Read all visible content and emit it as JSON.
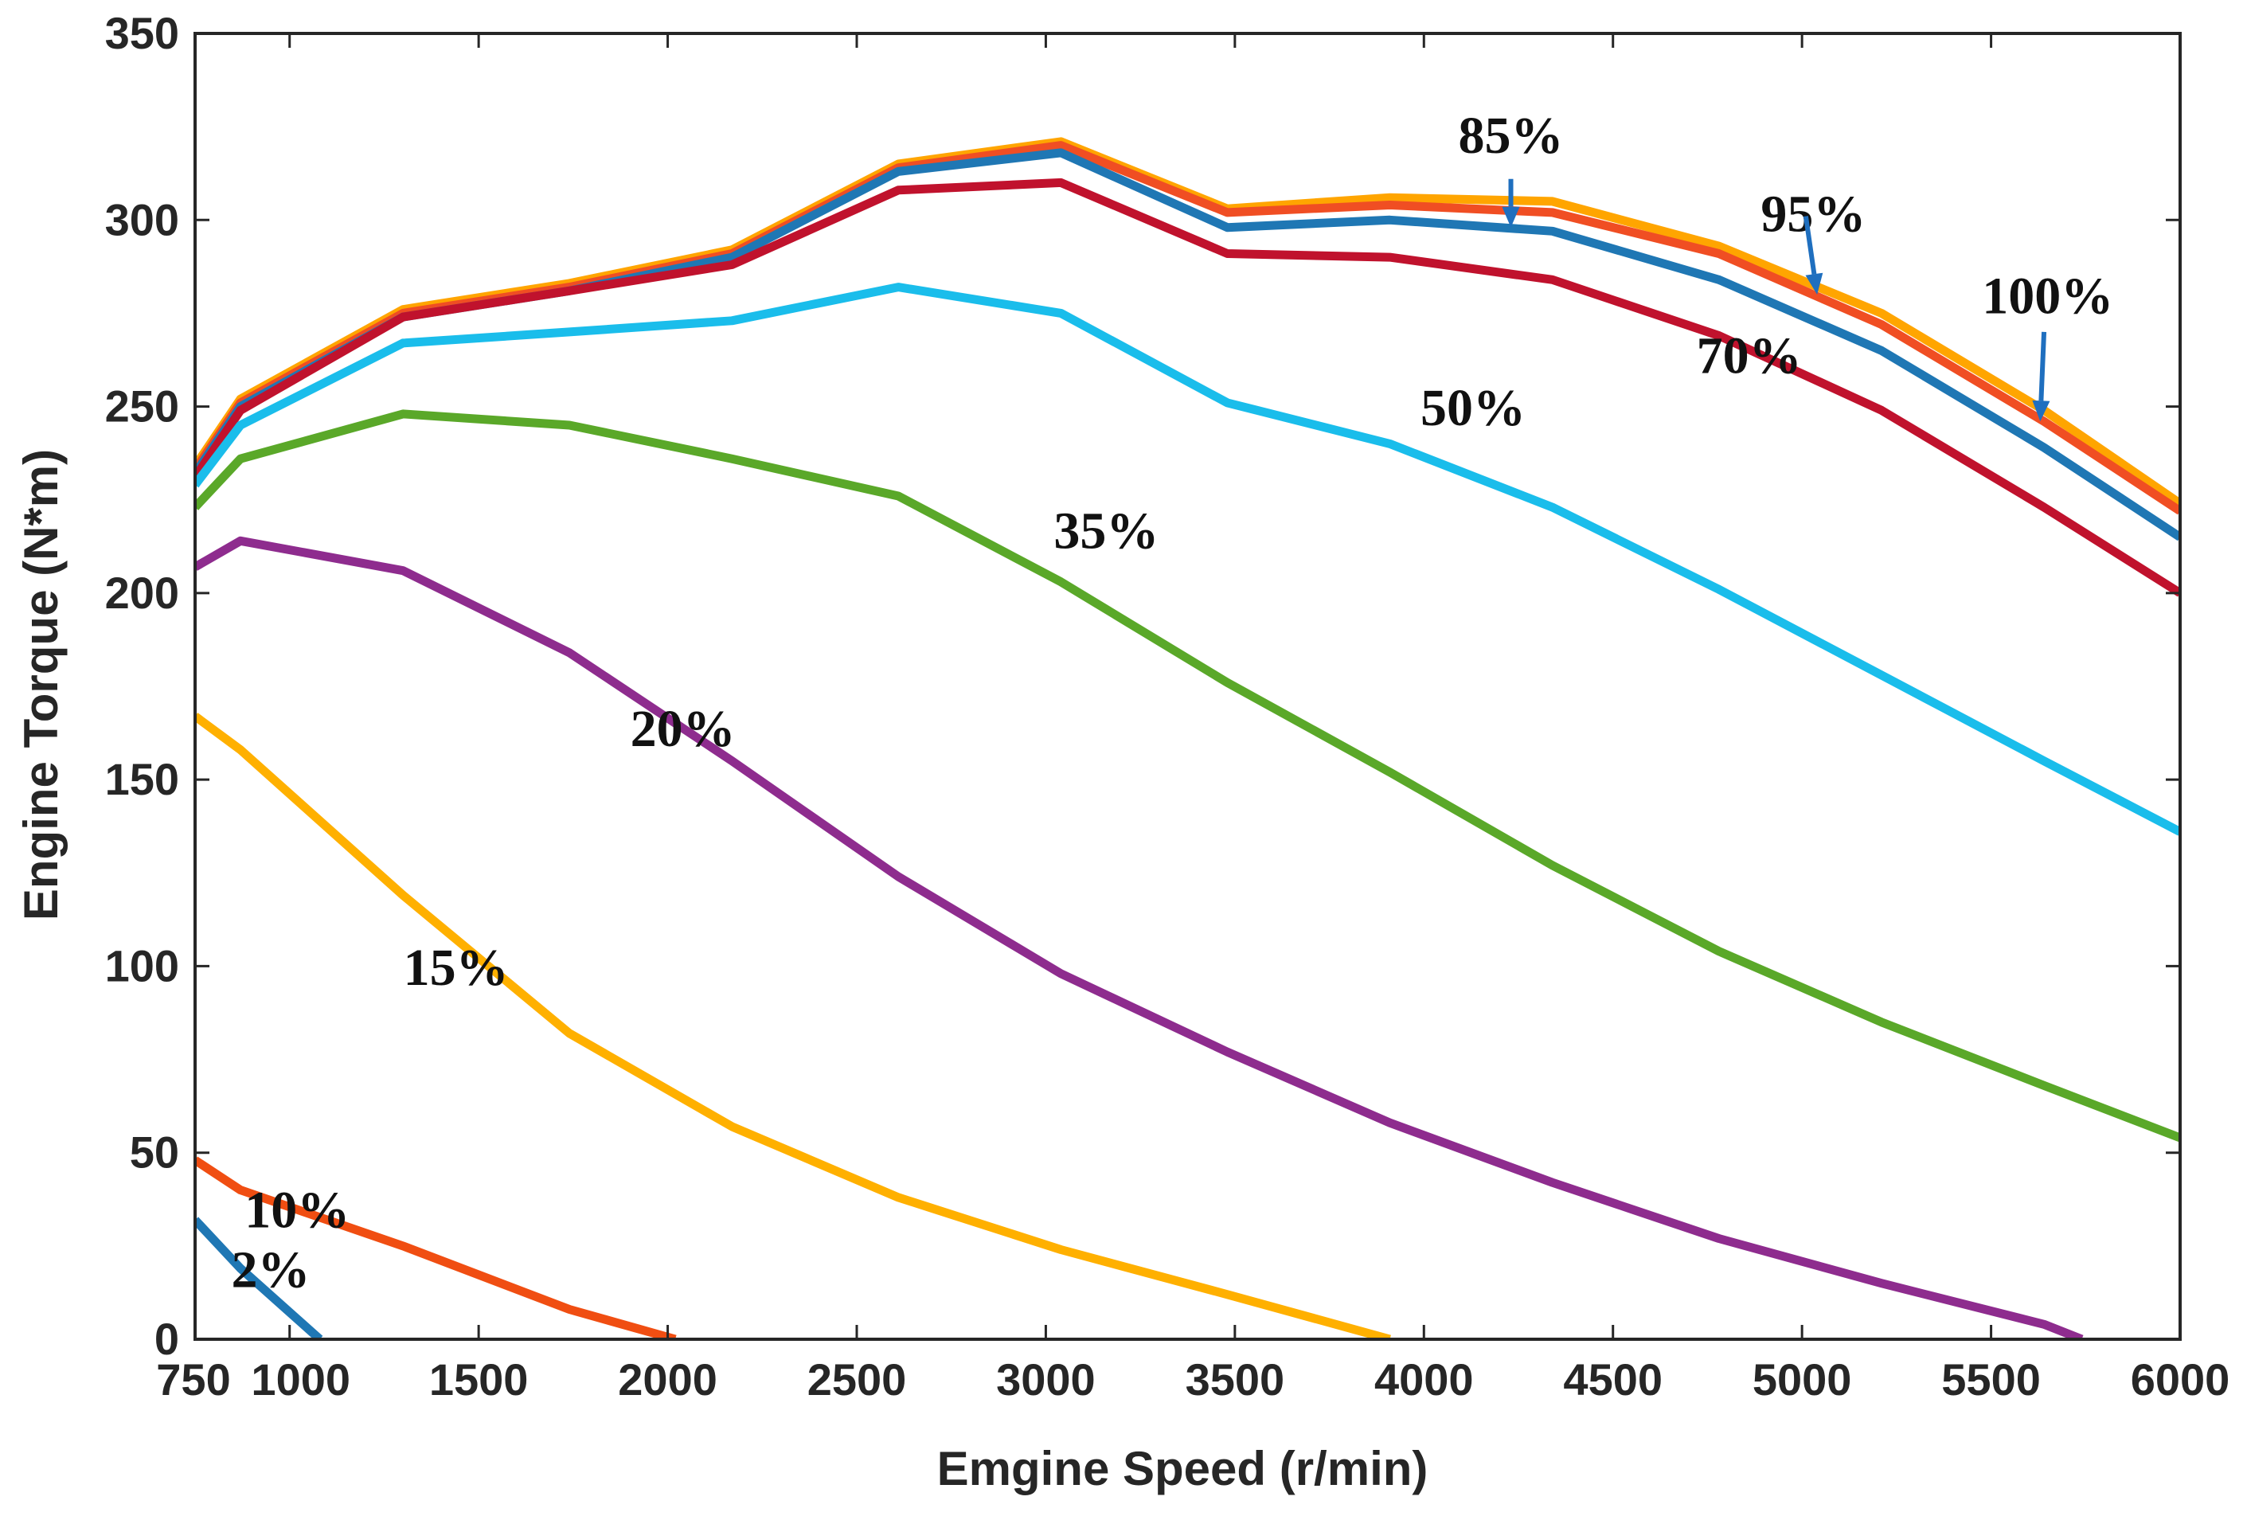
{
  "chart_data": {
    "type": "line",
    "title": "",
    "xlabel": "Emgine Speed (r/min)",
    "ylabel": "Engine Torque (N*m)",
    "xlim": [
      750,
      6000
    ],
    "ylim": [
      0,
      350
    ],
    "xticks": [
      750,
      1000,
      1500,
      2000,
      2500,
      3000,
      3500,
      4000,
      4500,
      5000,
      5500,
      6000
    ],
    "xtick_labels": [
      "750",
      "1000",
      "1500",
      "2000",
      "2500",
      "3000",
      "3500",
      "4000",
      "4500",
      "5000",
      "5500",
      "6000"
    ],
    "yticks": [
      0,
      50,
      100,
      150,
      200,
      250,
      300,
      350
    ],
    "ytick_labels": [
      "0",
      "50",
      "100",
      "150",
      "200",
      "250",
      "300",
      "350"
    ],
    "grid": false,
    "series": [
      {
        "name": "100%",
        "color": "#FFA500",
        "x": [
          750,
          870,
          1300,
          1740,
          2170,
          2610,
          3040,
          3480,
          3910,
          4340,
          4780,
          5210,
          5640,
          6000
        ],
        "y": [
          234,
          252,
          276,
          283,
          292,
          315,
          321,
          303,
          306,
          305,
          293,
          275,
          249,
          224
        ]
      },
      {
        "name": "95%",
        "color": "#F04E23",
        "x": [
          750,
          870,
          1300,
          1740,
          2170,
          2610,
          3040,
          3480,
          3910,
          4340,
          4780,
          5210,
          5640,
          6000
        ],
        "y": [
          233,
          251,
          275,
          282,
          291,
          314,
          320,
          302,
          304,
          302,
          291,
          272,
          246,
          222
        ]
      },
      {
        "name": "85%",
        "color": "#1F77B4",
        "x": [
          750,
          870,
          1300,
          1740,
          2170,
          2610,
          3040,
          3480,
          3910,
          4340,
          4780,
          5210,
          5640,
          6000
        ],
        "y": [
          232,
          250,
          274,
          281,
          290,
          313,
          318,
          298,
          300,
          297,
          284,
          265,
          239,
          215
        ]
      },
      {
        "name": "70%",
        "color": "#C0122D",
        "x": [
          750,
          870,
          1300,
          1740,
          2170,
          2610,
          3040,
          3480,
          3910,
          4340,
          4780,
          5210,
          5640,
          6000
        ],
        "y": [
          231,
          249,
          274,
          281,
          288,
          308,
          310,
          291,
          290,
          284,
          269,
          249,
          223,
          200
        ]
      },
      {
        "name": "50%",
        "color": "#1ABDEB",
        "x": [
          750,
          870,
          1300,
          1740,
          2170,
          2610,
          3040,
          3480,
          3910,
          4340,
          4780,
          5210,
          5640,
          6000
        ],
        "y": [
          229,
          245,
          267,
          270,
          273,
          282,
          275,
          251,
          240,
          223,
          201,
          178,
          155,
          136
        ]
      },
      {
        "name": "35%",
        "color": "#5AA829",
        "x": [
          750,
          870,
          1300,
          1740,
          2170,
          2610,
          3040,
          3480,
          3910,
          4340,
          4780,
          5210,
          5640,
          6000
        ],
        "y": [
          223,
          236,
          248,
          245,
          236,
          226,
          203,
          176,
          152,
          127,
          104,
          85,
          68,
          54
        ]
      },
      {
        "name": "20%",
        "color": "#8E2C8E",
        "x": [
          750,
          870,
          1300,
          1740,
          2170,
          2610,
          3040,
          3480,
          3910,
          4340,
          4780,
          5210,
          5640,
          5740
        ],
        "y": [
          207,
          214,
          206,
          184,
          155,
          124,
          98,
          77,
          58,
          42,
          27,
          15,
          4,
          0
        ]
      },
      {
        "name": "15%",
        "color": "#FFB000",
        "x": [
          750,
          870,
          1300,
          1740,
          2170,
          2610,
          3040,
          3480,
          3910
        ],
        "y": [
          167,
          158,
          119,
          82,
          57,
          38,
          24,
          12,
          0
        ]
      },
      {
        "name": "10%",
        "color": "#F04E12",
        "x": [
          750,
          870,
          1300,
          1740,
          2020
        ],
        "y": [
          48,
          40,
          25,
          8,
          0
        ]
      },
      {
        "name": "2%",
        "color": "#1F77B4",
        "x": [
          750,
          870,
          1080
        ],
        "y": [
          32,
          19,
          0
        ]
      }
    ],
    "annotations": [
      {
        "text": "85%",
        "x": 4230,
        "y": 318,
        "arrow_to": [
          4230,
          298
        ],
        "arrow_from": [
          4230,
          311
        ]
      },
      {
        "text": "95%",
        "x": 5030,
        "y": 297,
        "arrow_to": [
          5040,
          280
        ],
        "arrow_from": [
          5010,
          301
        ]
      },
      {
        "text": "100%",
        "x": 5650,
        "y": 275,
        "arrow_to": [
          5630,
          246
        ],
        "arrow_from": [
          5640,
          270
        ]
      },
      {
        "text": "70%",
        "x": 4860,
        "y": 259,
        "arrow_to": null,
        "arrow_from": null
      },
      {
        "text": "50%",
        "x": 4130,
        "y": 245,
        "arrow_to": null,
        "arrow_from": null
      },
      {
        "text": "35%",
        "x": 3160,
        "y": 212,
        "arrow_to": null,
        "arrow_from": null
      },
      {
        "text": "20%",
        "x": 2040,
        "y": 159,
        "arrow_to": null,
        "arrow_from": null
      },
      {
        "text": "15%",
        "x": 1440,
        "y": 95,
        "arrow_to": null,
        "arrow_from": null
      },
      {
        "text": "10%",
        "x": 1020,
        "y": 30,
        "arrow_to": null,
        "arrow_from": null
      },
      {
        "text": "2%",
        "x": 950,
        "y": 14,
        "arrow_to": null,
        "arrow_from": null
      }
    ]
  }
}
